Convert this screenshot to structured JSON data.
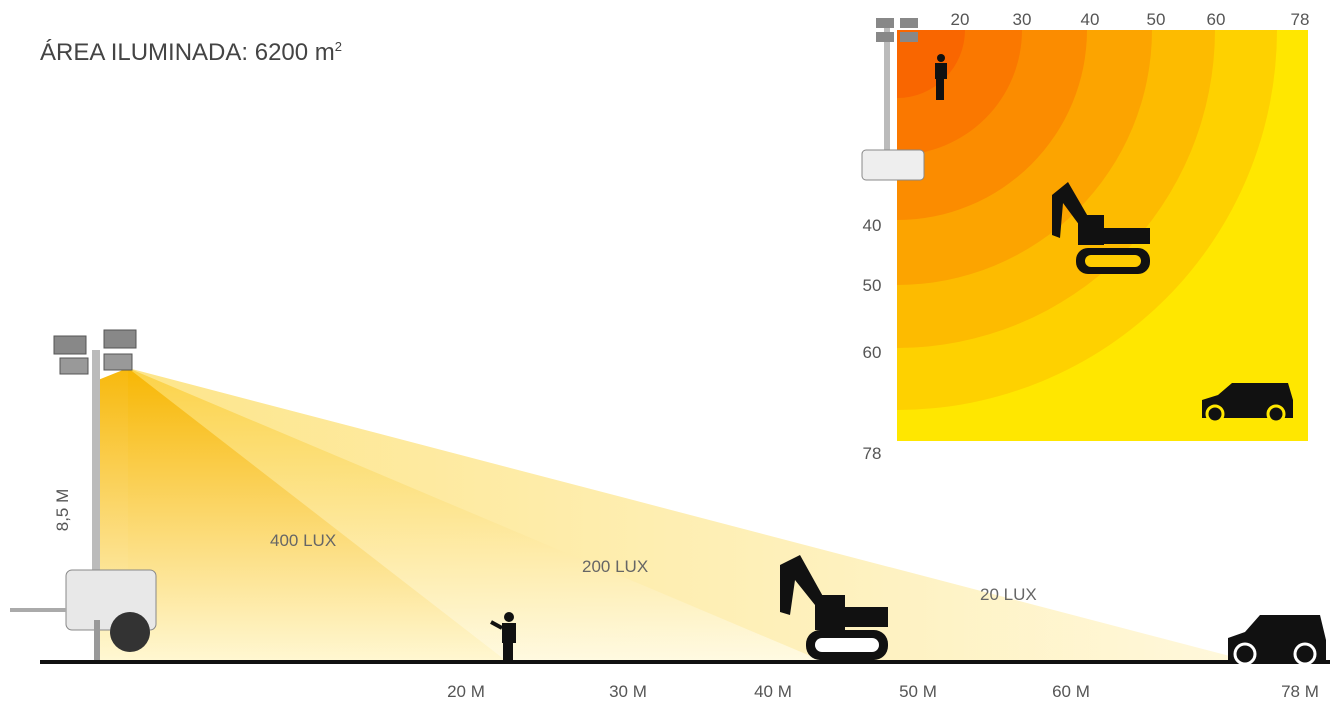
{
  "header": {
    "title": "ÁREA ILUMINADA: 6200 m",
    "title_superscript": "2"
  },
  "side_view": {
    "height_label": "8,5 M",
    "lux_labels": [
      "400 LUX",
      "200 LUX",
      "20 LUX"
    ],
    "distance_labels": [
      "20 M",
      "30 M",
      "40 M",
      "50 M",
      "60 M",
      "78 M"
    ]
  },
  "top_view": {
    "x_labels": [
      "20",
      "30",
      "40",
      "50",
      "60",
      "78"
    ],
    "y_labels": [
      "40",
      "50",
      "60",
      "78"
    ]
  }
}
